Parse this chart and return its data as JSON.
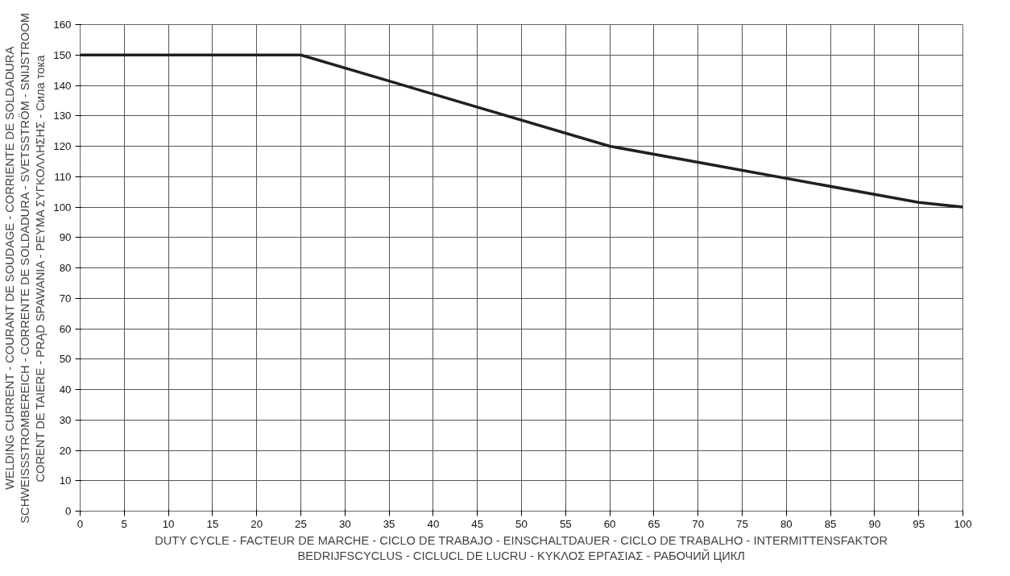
{
  "chart_data": {
    "type": "line",
    "xlabel": "DUTY CYCLE - FACTEUR DE MARCHE - CICLO DE TRABAJO - EINSCHALTDAUER - CICLO DE TRABALHO - INTERMITTENSFAKTOR\nBEDRIJFSCYCLUS - CICLUCL DE LUCRU - ΚΥΚΛΟΣ ΕΡΓΑΣΙΑΣ - РАБОЧИЙ ЦИКЛ",
    "ylabel": "WELDING CURRENT - COURANT DE SOUDAGE - CORRIENTE DE SOLDADURA\nSCHWEISSSTROMBEREICH - CORRENTE DE SOLDADURA - SVETSSTRÖM - SNIJSTROOM\nCORENT DE TAIERE - PRĄD SPAWANIA - ΡΕΥΜΑ ΣΥΓΚΟΛΛΗΣΗΣ - Сила тока",
    "x": [
      0,
      25,
      60,
      95,
      100
    ],
    "series": [
      {
        "color": "#231f20",
        "values": [
          150,
          150,
          120,
          101.5,
          100
        ]
      }
    ],
    "xlim": [
      0,
      100
    ],
    "xticks": [
      0,
      5,
      10,
      15,
      20,
      25,
      30,
      35,
      40,
      45,
      50,
      55,
      60,
      65,
      70,
      75,
      80,
      85,
      90,
      95,
      100
    ],
    "ylim": [
      0,
      160
    ],
    "yticks": [
      0,
      10,
      20,
      30,
      40,
      50,
      60,
      70,
      80,
      90,
      100,
      110,
      120,
      130,
      140,
      150,
      160
    ],
    "grid": true,
    "line_style": "solid",
    "marker": "none"
  }
}
